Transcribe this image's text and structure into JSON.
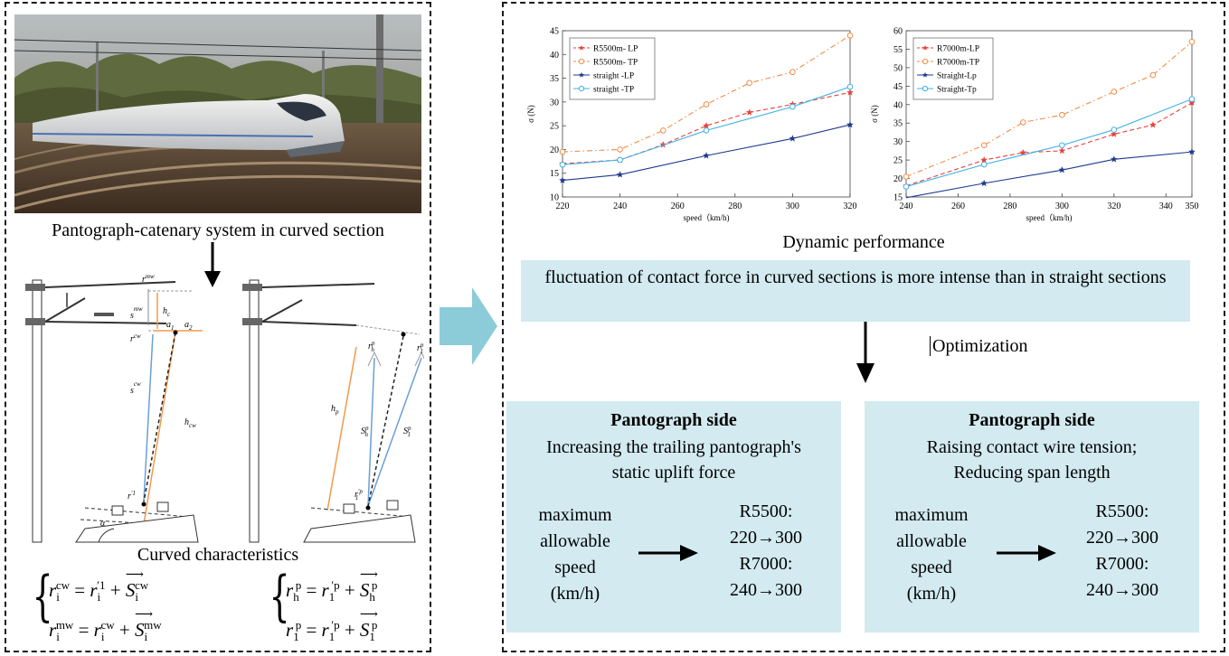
{
  "left_panel": {
    "photo_caption": "Pantograph-catenary system in curved section",
    "curve_caption": "Curved characteristics",
    "diagram_labels": {
      "r_mw": "r",
      "r_mw_sup": "mw",
      "h_c": "h",
      "h_c_sub": "c",
      "s_mw": "s",
      "s_mw_sup": "mw",
      "a1": "a",
      "a1_sub": "1",
      "a2": "a",
      "a2_sub": "2",
      "r_cw": "r",
      "r_cw_sup": "cw",
      "s_cw": "s",
      "s_cw_sup": "cw",
      "h_cw": "h",
      "h_cw_sub": "cw",
      "r_i1": "r",
      "r_i1_sup": "'1",
      "alpha": "α",
      "r_hp": "r",
      "r_hp_sup": "p",
      "r_hp_sub": "h",
      "r_1p": "r",
      "r_1p_sup": "p",
      "r_1p_sub": "1",
      "h_p": "h",
      "h_p_sub": "p",
      "S_hp": "S",
      "S_hp_sup": "p",
      "S_hp_sub": "h",
      "S_1p": "S",
      "S_1p_sup": "p",
      "S_1p_sub": "1",
      "r_1p_bottom": "r",
      "r_1p_bottom_sup": "'p",
      "r_1p_bottom_sub": "1"
    },
    "equations": {
      "eq1_lhs": "r",
      "eq1_lhs_sub": "i",
      "eq1_lhs_sup": "cw",
      "eq1_eq": " = ",
      "eq1_t1": "r",
      "eq1_t1_sub": "i",
      "eq1_t1_sup": "′1",
      "eq1_plus": " + ",
      "eq1_t2": "S",
      "eq1_t2_sub": "i",
      "eq1_t2_sup": "cw",
      "eq2_lhs": "r",
      "eq2_lhs_sub": "i",
      "eq2_lhs_sup": "mw",
      "eq2_eq": " = ",
      "eq2_t1": "r",
      "eq2_t1_sub": "i",
      "eq2_t1_sup": "cw",
      "eq2_plus": " + ",
      "eq2_t2": "S",
      "eq2_t2_sub": "i",
      "eq2_t2_sup": "mw",
      "eq3_lhs": "r",
      "eq3_lhs_sub": "h",
      "eq3_lhs_sup": "p",
      "eq3_eq": " = ",
      "eq3_t1": "r",
      "eq3_t1_sub": "1",
      "eq3_t1_sup": "′p",
      "eq3_plus": " + ",
      "eq3_t2": "S",
      "eq3_t2_sub": "h",
      "eq3_t2_sup": "p",
      "eq4_lhs": "r",
      "eq4_lhs_sub": "1",
      "eq4_lhs_sup": "p",
      "eq4_eq": " = ",
      "eq4_t1": "r",
      "eq4_t1_sub": "1",
      "eq4_t1_sup": "′p",
      "eq4_plus": " + ",
      "eq4_t2": "S",
      "eq4_t2_sub": "1",
      "eq4_t2_sup": "p"
    }
  },
  "right_panel": {
    "dynamic_caption": "Dynamic performance",
    "finding": "fluctuation of contact force in curved sections is more intense than in straight sections",
    "optimization_label": "Optimization",
    "left_box": {
      "title": "Pantograph side",
      "subtitle_line1": "Increasing the trailing pantograph's",
      "subtitle_line2": "static uplift force",
      "metric_line1": "maximum",
      "metric_line2": "allowable",
      "metric_line3": "speed",
      "metric_line4": "(km/h)",
      "r1_label": "R5500:",
      "r1_value": "220→300",
      "r2_label": "R7000:",
      "r2_value": "240→300"
    },
    "right_box": {
      "title": "Pantograph side",
      "subtitle_line1": "Raising contact wire tension;",
      "subtitle_line2": "Reducing  span length",
      "metric_line1": "maximum",
      "metric_line2": "allowable",
      "metric_line3": "speed",
      "metric_line4": "(km/h)",
      "r1_label": "R5500:",
      "r1_value": "220→300",
      "r2_label": "R7000:",
      "r2_value": "240→300"
    }
  },
  "chart_data": [
    {
      "type": "line",
      "xlabel": "speed（km/h)",
      "ylabel": "σ (N)",
      "xlim": [
        220,
        320
      ],
      "ylim": [
        10,
        45
      ],
      "xticks": [
        "220",
        "240",
        "260",
        "280",
        "300",
        "320"
      ],
      "yticks": [
        "10",
        "15",
        "20",
        "25",
        "30",
        "35",
        "40",
        "45"
      ],
      "legend_placement": "top-left",
      "series": [
        {
          "name": "R5500m- LP",
          "color": "#e8413a",
          "dash": "dash",
          "marker": "star",
          "x": [
            220,
            240,
            255,
            270,
            285,
            300,
            320
          ],
          "y": [
            17.0,
            17.8,
            21.0,
            25.0,
            27.8,
            29.5,
            32.0
          ]
        },
        {
          "name": "R5500m- TP",
          "color": "#f08c4a",
          "dash": "dashdot",
          "marker": "circle",
          "x": [
            220,
            240,
            255,
            270,
            285,
            300,
            320
          ],
          "y": [
            19.5,
            20.0,
            24.0,
            29.5,
            34.0,
            36.3,
            44.0
          ]
        },
        {
          "name": "straight -LP",
          "color": "#1f3a8f",
          "dash": "solid",
          "marker": "star",
          "x": [
            220,
            240,
            270,
            300,
            320
          ],
          "y": [
            13.5,
            14.7,
            18.7,
            22.3,
            25.2
          ]
        },
        {
          "name": "straight -TP",
          "color": "#3fb0e8",
          "dash": "solid",
          "marker": "circle",
          "x": [
            220,
            240,
            270,
            300,
            320
          ],
          "y": [
            16.8,
            17.8,
            24.0,
            29.0,
            33.2
          ]
        }
      ]
    },
    {
      "type": "line",
      "xlabel": "speed（km/h)",
      "ylabel": "σ (N)",
      "xlim": [
        240,
        350
      ],
      "ylim": [
        15,
        60
      ],
      "xticks": [
        "240",
        "260",
        "280",
        "300",
        "320",
        "340",
        "350"
      ],
      "yticks": [
        "15",
        "20",
        "25",
        "30",
        "35",
        "40",
        "45",
        "50",
        "55",
        "60"
      ],
      "legend_placement": "top-left",
      "series": [
        {
          "name": "R7000m-LP",
          "color": "#e8413a",
          "dash": "dash",
          "marker": "star",
          "x": [
            240,
            270,
            285,
            300,
            320,
            335,
            350
          ],
          "y": [
            18.0,
            25.0,
            27.0,
            27.5,
            32.0,
            34.5,
            40.5
          ]
        },
        {
          "name": "R7000m-TP",
          "color": "#f08c4a",
          "dash": "dashdot",
          "marker": "circle",
          "x": [
            240,
            270,
            285,
            300,
            320,
            335,
            350
          ],
          "y": [
            20.5,
            29.0,
            35.2,
            37.2,
            43.5,
            48.0,
            57.0
          ]
        },
        {
          "name": "Straight-Lp",
          "color": "#1f3a8f",
          "dash": "solid",
          "marker": "star",
          "x": [
            240,
            270,
            300,
            320,
            350
          ],
          "y": [
            14.8,
            18.7,
            22.3,
            25.2,
            27.2
          ]
        },
        {
          "name": "Straight-Tp",
          "color": "#3fb0e8",
          "dash": "solid",
          "marker": "circle",
          "x": [
            240,
            270,
            300,
            320,
            350
          ],
          "y": [
            17.8,
            23.8,
            29.0,
            33.2,
            41.5
          ]
        }
      ]
    }
  ]
}
